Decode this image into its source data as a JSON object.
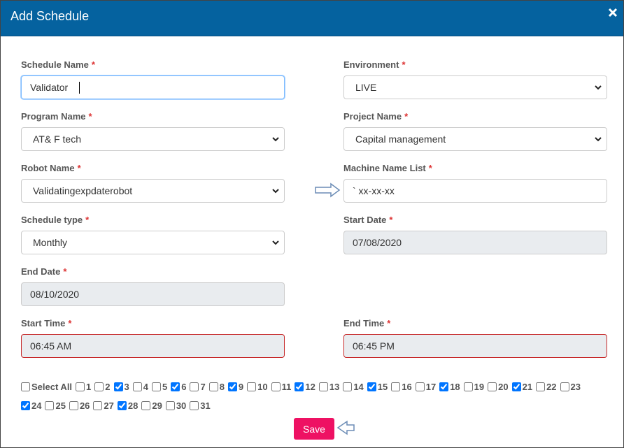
{
  "header": {
    "title": "Add Schedule"
  },
  "form": {
    "rows": [
      [
        {
          "label": "Schedule Name",
          "required": "*",
          "value": "Validator",
          "kind": "text-focused"
        },
        {
          "label": "Environment",
          "required": "*",
          "value": "LIVE",
          "kind": "select"
        }
      ],
      [
        {
          "label": "Program Name",
          "required": "*",
          "value": "AT& F tech",
          "kind": "select"
        },
        {
          "label": "Project Name",
          "required": "*",
          "value": "Capital management",
          "kind": "select"
        }
      ],
      [
        {
          "label": "Robot Name",
          "required": "*",
          "value": "Validatingexpdaterobot",
          "kind": "select"
        },
        {
          "label": "Machine Name List",
          "required": "*",
          "value": "` xx-xx-xx",
          "kind": "text"
        }
      ],
      [
        {
          "label": "Schedule type",
          "required": "*",
          "value": "Monthly",
          "kind": "select"
        },
        {
          "label": "Start Date",
          "required": "*",
          "value": "07/08/2020",
          "kind": "readonly"
        }
      ],
      [
        {
          "label": "End Date",
          "required": "*",
          "value": "08/10/2020",
          "kind": "readonly"
        }
      ],
      [
        {
          "label": "Start Time",
          "required": "*",
          "value": "06:45 AM",
          "kind": "error"
        },
        {
          "label": "End Time",
          "required": "*",
          "value": "06:45 PM",
          "kind": "error"
        }
      ]
    ]
  },
  "days": {
    "select_all": {
      "label": "Select All",
      "checked": false
    },
    "items": [
      {
        "label": "1",
        "checked": false
      },
      {
        "label": "2",
        "checked": false
      },
      {
        "label": "3",
        "checked": true
      },
      {
        "label": "4",
        "checked": false
      },
      {
        "label": "5",
        "checked": false
      },
      {
        "label": "6",
        "checked": true
      },
      {
        "label": "7",
        "checked": false
      },
      {
        "label": "8",
        "checked": false
      },
      {
        "label": "9",
        "checked": true
      },
      {
        "label": "10",
        "checked": false
      },
      {
        "label": "11",
        "checked": false
      },
      {
        "label": "12",
        "checked": true
      },
      {
        "label": "13",
        "checked": false
      },
      {
        "label": "14",
        "checked": false
      },
      {
        "label": "15",
        "checked": true
      },
      {
        "label": "16",
        "checked": false
      },
      {
        "label": "17",
        "checked": false
      },
      {
        "label": "18",
        "checked": true
      },
      {
        "label": "19",
        "checked": false
      },
      {
        "label": "20",
        "checked": false
      },
      {
        "label": "21",
        "checked": true
      },
      {
        "label": "22",
        "checked": false
      },
      {
        "label": "23",
        "checked": false
      },
      {
        "label": "24",
        "checked": true
      },
      {
        "label": "25",
        "checked": false
      },
      {
        "label": "26",
        "checked": false
      },
      {
        "label": "27",
        "checked": false
      },
      {
        "label": "28",
        "checked": true
      },
      {
        "label": "29",
        "checked": false
      },
      {
        "label": "30",
        "checked": false
      },
      {
        "label": "31",
        "checked": false
      }
    ]
  },
  "save_button": "Save"
}
